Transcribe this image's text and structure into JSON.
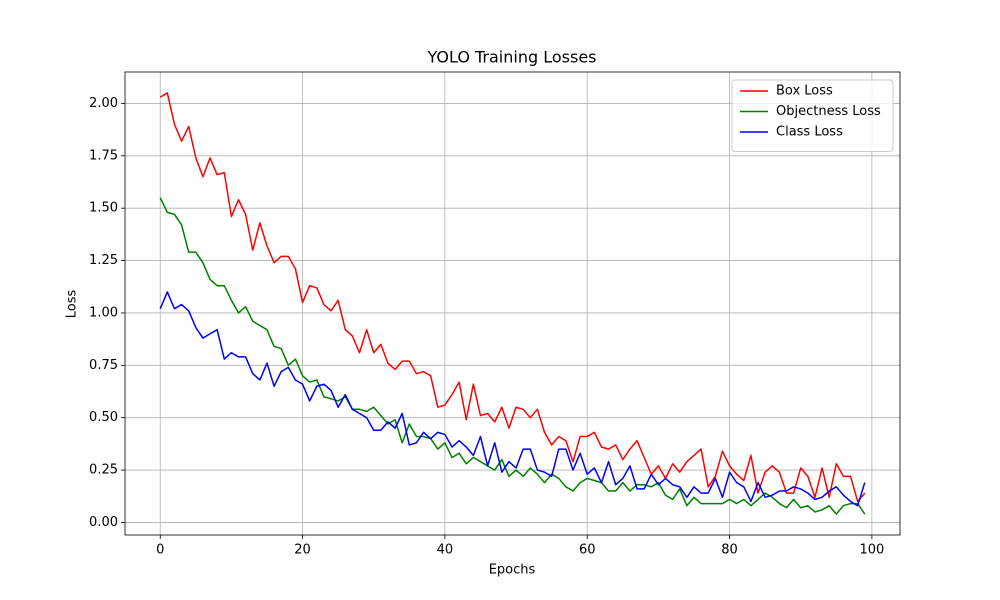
{
  "chart_data": {
    "type": "line",
    "title": "YOLO Training Losses",
    "xlabel": "Epochs",
    "ylabel": "Loss",
    "x": [
      0,
      1,
      2,
      3,
      4,
      5,
      6,
      7,
      8,
      9,
      10,
      11,
      12,
      13,
      14,
      15,
      16,
      17,
      18,
      19,
      20,
      21,
      22,
      23,
      24,
      25,
      26,
      27,
      28,
      29,
      30,
      31,
      32,
      33,
      34,
      35,
      36,
      37,
      38,
      39,
      40,
      41,
      42,
      43,
      44,
      45,
      46,
      47,
      48,
      49,
      50,
      51,
      52,
      53,
      54,
      55,
      56,
      57,
      58,
      59,
      60,
      61,
      62,
      63,
      64,
      65,
      66,
      67,
      68,
      69,
      70,
      71,
      72,
      73,
      74,
      75,
      76,
      77,
      78,
      79,
      80,
      81,
      82,
      83,
      84,
      85,
      86,
      87,
      88,
      89,
      90,
      91,
      92,
      93,
      94,
      95,
      96,
      97,
      98,
      99
    ],
    "series": [
      {
        "name": "Box Loss",
        "color": "#ff0000",
        "values": [
          2.03,
          2.05,
          1.9,
          1.82,
          1.89,
          1.74,
          1.65,
          1.74,
          1.66,
          1.67,
          1.46,
          1.54,
          1.47,
          1.3,
          1.43,
          1.32,
          1.24,
          1.27,
          1.27,
          1.21,
          1.05,
          1.13,
          1.12,
          1.04,
          1.01,
          1.06,
          0.92,
          0.89,
          0.81,
          0.92,
          0.81,
          0.85,
          0.76,
          0.73,
          0.77,
          0.77,
          0.71,
          0.72,
          0.7,
          0.55,
          0.56,
          0.61,
          0.67,
          0.49,
          0.66,
          0.51,
          0.52,
          0.48,
          0.55,
          0.45,
          0.55,
          0.54,
          0.5,
          0.54,
          0.43,
          0.37,
          0.41,
          0.39,
          0.29,
          0.41,
          0.41,
          0.43,
          0.36,
          0.35,
          0.37,
          0.3,
          0.35,
          0.39,
          0.31,
          0.23,
          0.27,
          0.21,
          0.28,
          0.24,
          0.29,
          0.32,
          0.35,
          0.17,
          0.22,
          0.34,
          0.27,
          0.23,
          0.2,
          0.32,
          0.14,
          0.24,
          0.27,
          0.24,
          0.14,
          0.14,
          0.26,
          0.22,
          0.12,
          0.26,
          0.12,
          0.28,
          0.22,
          0.22,
          0.1,
          0.14
        ]
      },
      {
        "name": "Objectness Loss",
        "color": "#008000",
        "values": [
          1.55,
          1.48,
          1.47,
          1.42,
          1.29,
          1.29,
          1.24,
          1.16,
          1.13,
          1.13,
          1.06,
          1.0,
          1.03,
          0.96,
          0.94,
          0.92,
          0.84,
          0.83,
          0.75,
          0.78,
          0.7,
          0.67,
          0.68,
          0.6,
          0.59,
          0.58,
          0.6,
          0.54,
          0.54,
          0.53,
          0.55,
          0.51,
          0.47,
          0.49,
          0.38,
          0.47,
          0.41,
          0.41,
          0.4,
          0.35,
          0.38,
          0.31,
          0.33,
          0.28,
          0.31,
          0.29,
          0.27,
          0.25,
          0.3,
          0.22,
          0.25,
          0.22,
          0.26,
          0.23,
          0.19,
          0.23,
          0.21,
          0.17,
          0.15,
          0.19,
          0.21,
          0.2,
          0.19,
          0.15,
          0.15,
          0.19,
          0.15,
          0.18,
          0.18,
          0.17,
          0.19,
          0.13,
          0.11,
          0.16,
          0.08,
          0.12,
          0.09,
          0.09,
          0.09,
          0.09,
          0.11,
          0.09,
          0.11,
          0.08,
          0.11,
          0.14,
          0.12,
          0.09,
          0.07,
          0.11,
          0.07,
          0.08,
          0.05,
          0.06,
          0.08,
          0.04,
          0.08,
          0.09,
          0.09,
          0.04
        ]
      },
      {
        "name": "Class Loss",
        "color": "#0000ff",
        "values": [
          1.02,
          1.1,
          1.02,
          1.04,
          1.01,
          0.93,
          0.88,
          0.9,
          0.92,
          0.78,
          0.81,
          0.79,
          0.79,
          0.71,
          0.68,
          0.76,
          0.65,
          0.72,
          0.74,
          0.68,
          0.66,
          0.58,
          0.65,
          0.66,
          0.63,
          0.55,
          0.61,
          0.54,
          0.52,
          0.5,
          0.44,
          0.44,
          0.48,
          0.45,
          0.52,
          0.37,
          0.38,
          0.43,
          0.4,
          0.43,
          0.42,
          0.36,
          0.39,
          0.36,
          0.32,
          0.41,
          0.27,
          0.38,
          0.24,
          0.29,
          0.26,
          0.35,
          0.35,
          0.25,
          0.24,
          0.22,
          0.35,
          0.35,
          0.25,
          0.33,
          0.23,
          0.26,
          0.19,
          0.29,
          0.18,
          0.21,
          0.27,
          0.16,
          0.16,
          0.23,
          0.18,
          0.21,
          0.18,
          0.17,
          0.12,
          0.17,
          0.14,
          0.14,
          0.21,
          0.12,
          0.24,
          0.19,
          0.17,
          0.1,
          0.19,
          0.12,
          0.13,
          0.15,
          0.15,
          0.17,
          0.16,
          0.14,
          0.11,
          0.12,
          0.15,
          0.17,
          0.13,
          0.1,
          0.08,
          0.19
        ]
      }
    ],
    "xlim": [
      -4.95,
      103.95
    ],
    "ylim": [
      -0.06,
      2.15
    ],
    "xticks": [
      0,
      20,
      40,
      60,
      80,
      100
    ],
    "yticks": [
      {
        "value": 0,
        "label": "0.00"
      },
      {
        "value": 0.25,
        "label": "0.25"
      },
      {
        "value": 0.5,
        "label": "0.50"
      },
      {
        "value": 0.75,
        "label": "0.75"
      },
      {
        "value": 1,
        "label": "1.00"
      },
      {
        "value": 1.25,
        "label": "1.25"
      },
      {
        "value": 1.5,
        "label": "1.50"
      },
      {
        "value": 1.75,
        "label": "1.75"
      },
      {
        "value": 2,
        "label": "2.00"
      }
    ],
    "grid": true,
    "legend": "upper-right"
  }
}
